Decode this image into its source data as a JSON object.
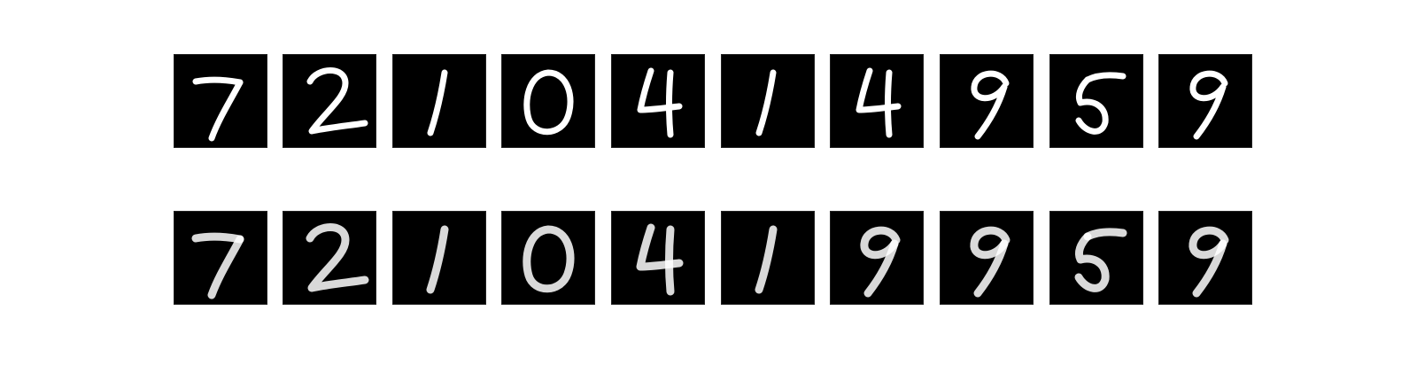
{
  "figure": {
    "background": "#ffffff",
    "tile_background": "#000000",
    "stroke_color": "#ffffff",
    "rows": [
      {
        "role": "original",
        "digits": [
          "7",
          "2",
          "1",
          "0",
          "4",
          "1",
          "4",
          "9",
          "5",
          "9"
        ]
      },
      {
        "role": "reconstruction",
        "digits": [
          "7",
          "2",
          "1",
          "0",
          "4",
          "1",
          "9",
          "9",
          "5",
          "9"
        ]
      }
    ]
  }
}
